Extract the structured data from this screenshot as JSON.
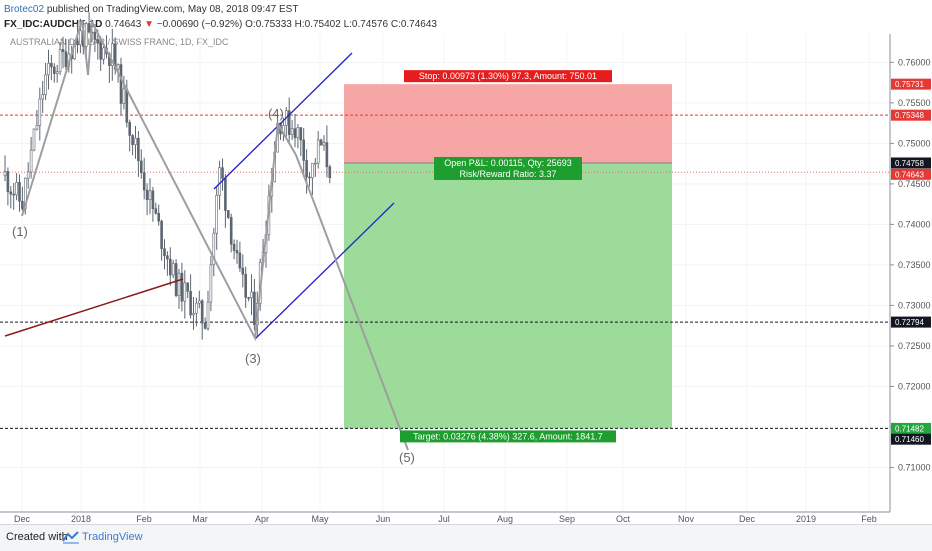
{
  "header": {
    "author": "Brotec02",
    "published": "published on TradingView.com, May 08, 2018 09:47 EST",
    "symbol": "FX_IDC:AUDCHF, 1D",
    "price": "0.74643",
    "arrow": "▼",
    "change": "−0.00690 (−0.92%)",
    "ohlc": "O:0.75333 H:0.75402 L:0.74576 C:0.74643"
  },
  "footer": {
    "created": "Created with",
    "brand": "TradingView"
  },
  "chart_data": {
    "type": "candlestick",
    "title": "AUSTRALIAN DOLLAR / SWISS FRANC, 1D, FX_IDC",
    "ylim": [
      0.7045,
      0.7635
    ],
    "y_ticks": [
      "0.76000",
      "0.75500",
      "0.75000",
      "0.74500",
      "0.74000",
      "0.73500",
      "0.73000",
      "0.72500",
      "0.72000",
      "0.71500",
      "0.71000"
    ],
    "x_labels": [
      "Dec",
      "2018",
      "Feb",
      "Mar",
      "Apr",
      "May",
      "Jun",
      "Jul",
      "Aug",
      "Sep",
      "Oct",
      "Nov",
      "Dec",
      "2019",
      "Feb"
    ],
    "price_labels": [
      {
        "value": 0.75731,
        "text": "0.75731",
        "color": "#e53935"
      },
      {
        "value": 0.75348,
        "text": "0.75348",
        "color": "#e53935"
      },
      {
        "value": 0.74758,
        "text": "0.74758",
        "color": "#131722"
      },
      {
        "value": 0.74643,
        "text": "0.74643",
        "color": "#e53935"
      },
      {
        "value": 0.72794,
        "text": "0.72794",
        "color": "#131722"
      },
      {
        "value": 0.71482,
        "text": "0.71482",
        "color": "#26a641"
      },
      {
        "value": 0.7146,
        "text": "0.71460",
        "color": "#131722"
      }
    ],
    "horizontal_lines": [
      {
        "value": 0.75348,
        "color": "#e53935",
        "style": "dashed"
      },
      {
        "value": 0.74643,
        "color": "#e57373",
        "style": "dotted"
      },
      {
        "value": 0.72794,
        "color": "#131722",
        "style": "dashed"
      },
      {
        "value": 0.71482,
        "color": "#131722",
        "style": "dashed"
      }
    ],
    "position": {
      "entry": 0.74758,
      "stop": 0.75731,
      "target": 0.71482,
      "stop_label": "Stop: 0.00973 (1.30%) 97.3, Amount: 750.01",
      "pl_label": "Open P&L: 0.00115, Qty: 25693",
      "rr_label": "Risk/Reward Ratio: 3.37",
      "target_label": "Target: 0.03276 (4.38%) 327.6, Amount: 1841.7"
    },
    "wave_labels": [
      "(1)",
      "(3)",
      "(4)",
      "(5)"
    ],
    "colors": {
      "up": "#5d6670",
      "down": "#5d6670",
      "stop_zone": "#f7a1a1",
      "target_zone": "#97d995",
      "channel": "#1e23c8",
      "trendline": "#8b1a1a",
      "wave_path": "#9e9e9e"
    }
  }
}
